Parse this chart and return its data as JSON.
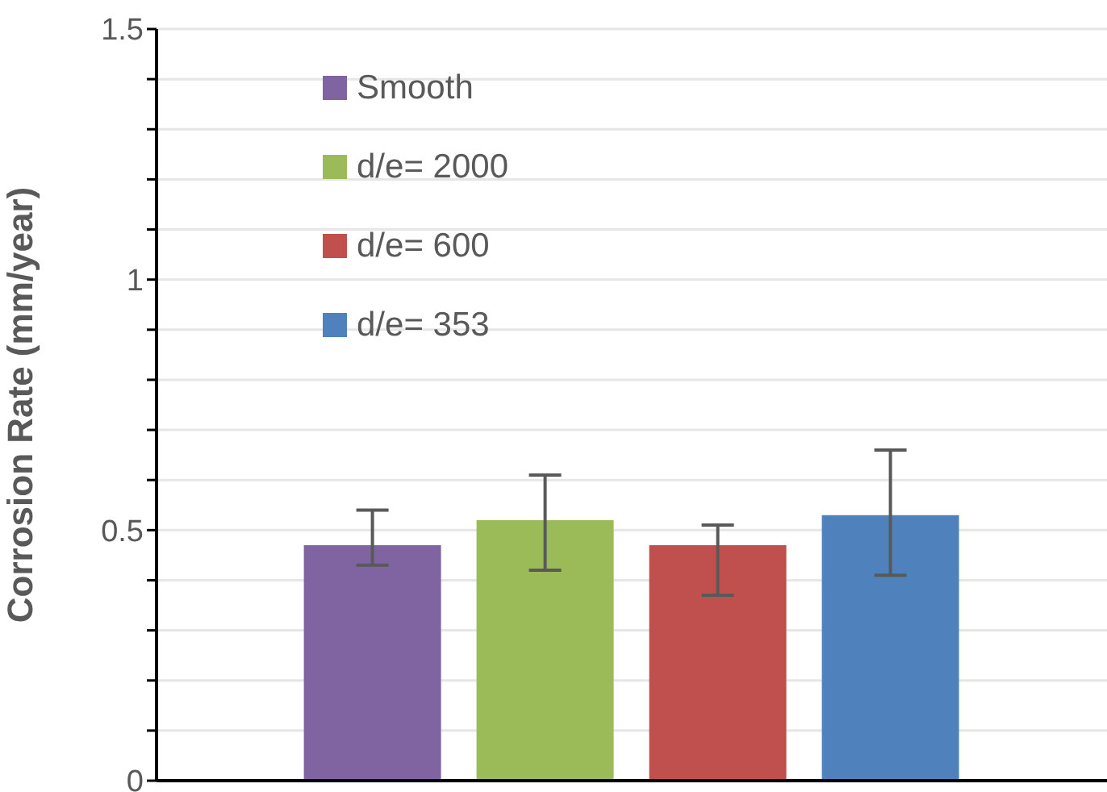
{
  "chart_data": {
    "type": "bar",
    "ylabel": "Corrosion Rate (mm/year)",
    "categories": [
      null
    ],
    "series": [
      {
        "name": "Smooth",
        "color": "#8064a2",
        "values": [
          0.47
        ],
        "errors": [
          [
            0.43,
            0.54
          ]
        ]
      },
      {
        "name": "d/e= 2000",
        "color": "#9bbb59",
        "values": [
          0.52
        ],
        "errors": [
          [
            0.42,
            0.61
          ]
        ]
      },
      {
        "name": "d/e= 600",
        "color": "#c0504d",
        "values": [
          0.47
        ],
        "errors": [
          [
            0.37,
            0.51
          ]
        ]
      },
      {
        "name": "d/e= 353",
        "color": "#4f81bd",
        "values": [
          0.53
        ],
        "errors": [
          [
            0.41,
            0.66
          ]
        ]
      }
    ],
    "ylim": [
      0,
      1.5
    ],
    "yticks": [
      0,
      {
        "value": 0.1,
        "label": null
      },
      {
        "value": 0.2,
        "label": null
      },
      {
        "value": 0.3,
        "label": null
      },
      {
        "value": 0.4,
        "label": null
      },
      0.5,
      {
        "value": 0.6,
        "label": null
      },
      {
        "value": 0.7,
        "label": null
      },
      {
        "value": 0.8,
        "label": null
      },
      {
        "value": 0.9,
        "label": null
      },
      1,
      {
        "value": 1.1,
        "label": null
      },
      {
        "value": 1.2,
        "label": null
      },
      {
        "value": 1.3,
        "label": null
      },
      {
        "value": 1.4,
        "label": null
      },
      1.5
    ],
    "grid": "y",
    "legend": "top left"
  }
}
